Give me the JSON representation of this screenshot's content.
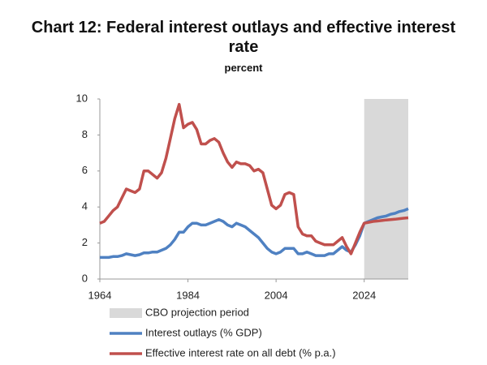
{
  "chart_data": {
    "type": "line",
    "title": "Chart 12: Federal interest outlays and effective interest rate",
    "subtitle": "percent",
    "x": [
      1964,
      1965,
      1966,
      1967,
      1968,
      1969,
      1970,
      1971,
      1972,
      1973,
      1974,
      1975,
      1976,
      1977,
      1978,
      1979,
      1980,
      1981,
      1982,
      1983,
      1984,
      1985,
      1986,
      1987,
      1988,
      1989,
      1990,
      1991,
      1992,
      1993,
      1994,
      1995,
      1996,
      1997,
      1998,
      1999,
      2000,
      2001,
      2002,
      2003,
      2004,
      2005,
      2006,
      2007,
      2008,
      2009,
      2010,
      2011,
      2012,
      2013,
      2014,
      2015,
      2016,
      2017,
      2018,
      2019,
      2020,
      2021,
      2022,
      2023,
      2024,
      2025,
      2026,
      2027,
      2028,
      2029,
      2030,
      2031,
      2032,
      2033,
      2034
    ],
    "series": [
      {
        "name": "Interest outlays (% GDP)",
        "color": "#4f81c2",
        "values": [
          1.2,
          1.2,
          1.2,
          1.25,
          1.25,
          1.3,
          1.4,
          1.35,
          1.3,
          1.35,
          1.45,
          1.45,
          1.5,
          1.5,
          1.6,
          1.7,
          1.9,
          2.2,
          2.6,
          2.6,
          2.9,
          3.1,
          3.1,
          3.0,
          3.0,
          3.1,
          3.2,
          3.3,
          3.2,
          3.0,
          2.9,
          3.1,
          3.0,
          2.9,
          2.7,
          2.5,
          2.3,
          2.0,
          1.7,
          1.5,
          1.4,
          1.5,
          1.7,
          1.7,
          1.7,
          1.4,
          1.4,
          1.5,
          1.4,
          1.3,
          1.3,
          1.3,
          1.4,
          1.4,
          1.6,
          1.8,
          1.6,
          1.5,
          1.9,
          2.4,
          3.1,
          3.2,
          3.3,
          3.4,
          3.45,
          3.5,
          3.6,
          3.65,
          3.75,
          3.8,
          3.9
        ]
      },
      {
        "name": "Effective interest rate on all debt (% p.a.)",
        "color": "#c0504d",
        "values": [
          3.1,
          3.2,
          3.5,
          3.8,
          4.0,
          4.5,
          5.0,
          4.9,
          4.8,
          5.0,
          6.0,
          6.0,
          5.8,
          5.6,
          5.9,
          6.7,
          7.8,
          8.9,
          9.7,
          8.4,
          8.6,
          8.7,
          8.3,
          7.5,
          7.5,
          7.7,
          7.8,
          7.6,
          7.0,
          6.5,
          6.2,
          6.5,
          6.4,
          6.4,
          6.3,
          6.0,
          6.1,
          5.9,
          5.0,
          4.1,
          3.9,
          4.1,
          4.7,
          4.8,
          4.7,
          2.9,
          2.5,
          2.4,
          2.4,
          2.1,
          2.0,
          1.9,
          1.9,
          1.9,
          2.1,
          2.3,
          1.8,
          1.4,
          2.0,
          2.6,
          3.1,
          3.15,
          3.2,
          3.22,
          3.25,
          3.28,
          3.3,
          3.32,
          3.35,
          3.38,
          3.4
        ]
      }
    ],
    "projection": {
      "label": "CBO projection period",
      "start": 2024,
      "end": 2034,
      "color": "#d9d9d9"
    },
    "xlim": [
      1964,
      2034
    ],
    "xticks": [
      1964,
      1984,
      2004,
      2024
    ],
    "ylim": [
      0,
      10
    ],
    "yticks": [
      0,
      2,
      4,
      6,
      8,
      10
    ],
    "grid": false
  }
}
